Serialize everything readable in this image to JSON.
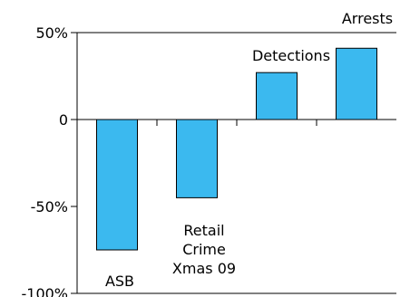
{
  "chart_data": {
    "type": "bar",
    "categories": [
      "ASB",
      "Retail Crime Xmas 09",
      "Detections",
      "Arrests"
    ],
    "category_label_lines": [
      [
        "ASB"
      ],
      [
        "Retail",
        "Crime",
        "Xmas 09"
      ],
      [
        "Detections"
      ],
      [
        "Arrests"
      ]
    ],
    "values": [
      -75,
      -45,
      27,
      41
    ],
    "ylim": [
      -100,
      50
    ],
    "yticks": [
      50,
      0,
      -50,
      -100
    ],
    "ytick_labels": [
      "50%",
      "0",
      "-50%",
      "-100%"
    ],
    "title": "",
    "xlabel": "",
    "ylabel": "",
    "grid": false,
    "bar_color": "#3bb9ef",
    "edge_color": "#000000"
  }
}
